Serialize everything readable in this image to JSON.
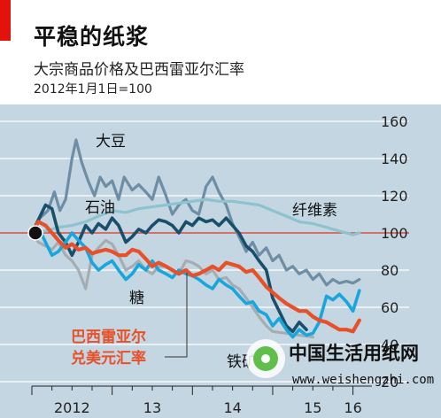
{
  "header": {
    "title": "平稳的纸浆",
    "subtitle": "大宗商品价格及巴西雷亚尔汇率",
    "index_note": "2012年1月1日=100"
  },
  "watermark": {
    "text": "中国生活用纸网",
    "url": "www.weishengzhi.com"
  },
  "colors": {
    "background": "#c3d6e1",
    "accent_tab": "#e3120b",
    "soy": "#6d8ea5",
    "oil": "#1a4f6b",
    "sugar": "#a6adb2",
    "pulp": "#8cc3cf",
    "iron": "#18a6dd",
    "brl": "#e8502a",
    "baseline": "#d94f3f"
  },
  "chart_data": {
    "type": "line",
    "title": "平稳的纸浆",
    "subtitle": "大宗商品价格及巴西雷亚尔汇率",
    "note": "2012年1月1日=100",
    "xlabel": "",
    "ylabel": "",
    "x_ticks": [
      "2012",
      "13",
      "14",
      "15",
      "16"
    ],
    "y_ticks": [
      20,
      40,
      60,
      80,
      100,
      120,
      140,
      160
    ],
    "ylim": [
      20,
      165
    ],
    "xlim": [
      2012.0,
      2016.17
    ],
    "baseline": 100,
    "grid": true,
    "series": [
      {
        "name": "大豆",
        "key": "soy",
        "x": [
          2012.0,
          2012.1,
          2012.2,
          2012.28,
          2012.35,
          2012.42,
          2012.5,
          2012.55,
          2012.62,
          2012.7,
          2012.78,
          2012.85,
          2012.92,
          2013.0,
          2013.08,
          2013.15,
          2013.25,
          2013.33,
          2013.42,
          2013.5,
          2013.58,
          2013.67,
          2013.75,
          2013.83,
          2013.92,
          2014.0,
          2014.08,
          2014.17,
          2014.25,
          2014.33,
          2014.42,
          2014.5,
          2014.58,
          2014.67,
          2014.75,
          2014.83,
          2014.92,
          2015.0,
          2015.08,
          2015.17,
          2015.25,
          2015.33,
          2015.42,
          2015.5,
          2015.58,
          2015.67,
          2015.75,
          2015.83,
          2015.92,
          2016.0,
          2016.08
        ],
        "y": [
          100,
          108,
          112,
          122,
          112,
          118,
          140,
          150,
          138,
          128,
          120,
          130,
          125,
          128,
          118,
          130,
          123,
          126,
          122,
          118,
          130,
          120,
          110,
          115,
          118,
          112,
          110,
          125,
          130,
          122,
          115,
          105,
          98,
          90,
          95,
          88,
          92,
          85,
          88,
          80,
          82,
          78,
          80,
          75,
          78,
          72,
          75,
          73,
          74,
          73,
          75
        ]
      },
      {
        "name": "纤维素",
        "key": "pulp",
        "x": [
          2012.0,
          2012.17,
          2012.33,
          2012.5,
          2012.67,
          2012.83,
          2013.0,
          2013.17,
          2013.33,
          2013.5,
          2013.67,
          2013.83,
          2014.0,
          2014.17,
          2014.33,
          2014.5,
          2014.67,
          2014.83,
          2015.0,
          2015.17,
          2015.33,
          2015.5,
          2015.67,
          2015.83,
          2015.92,
          2016.0,
          2016.08
        ],
        "y": [
          100,
          101,
          103,
          104,
          106,
          109,
          112,
          111,
          113,
          114,
          115,
          116,
          117,
          118,
          117,
          117,
          116,
          115,
          112,
          109,
          106,
          105,
          103,
          101,
          100,
          99,
          100
        ]
      },
      {
        "name": "石油",
        "key": "oil",
        "x": [
          2012.0,
          2012.08,
          2012.17,
          2012.25,
          2012.33,
          2012.42,
          2012.5,
          2012.58,
          2012.67,
          2012.75,
          2012.83,
          2012.92,
          2013.0,
          2013.08,
          2013.17,
          2013.25,
          2013.33,
          2013.42,
          2013.5,
          2013.58,
          2013.67,
          2013.75,
          2013.83,
          2013.92,
          2014.0,
          2014.08,
          2014.17,
          2014.25,
          2014.33,
          2014.42,
          2014.5,
          2014.58,
          2014.67,
          2014.75,
          2014.83,
          2014.92,
          2015.0,
          2015.08,
          2015.17,
          2015.25,
          2015.33,
          2015.42
        ],
        "y": [
          100,
          107,
          115,
          113,
          100,
          95,
          88,
          95,
          104,
          100,
          105,
          102,
          108,
          104,
          95,
          98,
          102,
          100,
          104,
          107,
          106,
          104,
          100,
          106,
          104,
          108,
          106,
          107,
          104,
          108,
          104,
          100,
          93,
          90,
          85,
          80,
          65,
          58,
          50,
          47,
          52,
          48
        ]
      },
      {
        "name": "糖",
        "key": "sugar",
        "x": [
          2012.0,
          2012.08,
          2012.17,
          2012.25,
          2012.33,
          2012.42,
          2012.5,
          2012.58,
          2012.67,
          2012.75,
          2012.83,
          2012.92,
          2013.0,
          2013.08,
          2013.17,
          2013.25,
          2013.33,
          2013.42,
          2013.5,
          2013.58,
          2013.67,
          2013.75,
          2013.83,
          2013.92,
          2014.0,
          2014.08,
          2014.17,
          2014.25,
          2014.33,
          2014.42,
          2014.5,
          2014.58,
          2014.67,
          2014.75,
          2014.83,
          2014.92,
          2015.0,
          2015.17,
          2015.33,
          2015.5
        ],
        "y": [
          100,
          95,
          93,
          91,
          95,
          88,
          85,
          80,
          70,
          88,
          92,
          96,
          94,
          88,
          80,
          82,
          85,
          80,
          78,
          82,
          82,
          80,
          78,
          85,
          84,
          82,
          78,
          80,
          75,
          76,
          72,
          70,
          65,
          60,
          55,
          50,
          47,
          46,
          45,
          44
        ]
      },
      {
        "name": "铁矿石",
        "key": "iron",
        "x": [
          2012.0,
          2012.08,
          2012.17,
          2012.25,
          2012.33,
          2012.42,
          2012.5,
          2012.58,
          2012.67,
          2012.75,
          2012.83,
          2012.92,
          2013.0,
          2013.08,
          2013.17,
          2013.25,
          2013.33,
          2013.42,
          2013.5,
          2013.58,
          2013.67,
          2013.75,
          2013.83,
          2013.92,
          2014.0,
          2014.08,
          2014.17,
          2014.25,
          2014.33,
          2014.42,
          2014.5,
          2014.58,
          2014.67,
          2014.75,
          2014.83,
          2014.92,
          2015.0,
          2015.08,
          2015.17,
          2015.25,
          2015.33,
          2015.42,
          2015.5,
          2015.58,
          2015.67,
          2015.75,
          2015.83,
          2015.92,
          2016.0,
          2016.08
        ],
        "y": [
          100,
          103,
          95,
          88,
          90,
          95,
          100,
          96,
          92,
          84,
          80,
          83,
          85,
          80,
          75,
          78,
          83,
          80,
          85,
          80,
          78,
          76,
          80,
          78,
          77,
          75,
          72,
          70,
          75,
          72,
          70,
          66,
          62,
          63,
          58,
          56,
          50,
          54,
          48,
          44,
          48,
          45,
          46,
          52,
          66,
          64,
          67,
          63,
          58,
          69
        ]
      },
      {
        "name": "巴西雷亚尔兑美元汇率",
        "key": "brl",
        "x": [
          2012.0,
          2012.08,
          2012.17,
          2012.25,
          2012.33,
          2012.42,
          2012.5,
          2012.58,
          2012.67,
          2012.75,
          2012.83,
          2012.92,
          2013.0,
          2013.08,
          2013.17,
          2013.25,
          2013.33,
          2013.42,
          2013.5,
          2013.58,
          2013.67,
          2013.75,
          2013.83,
          2013.92,
          2014.0,
          2014.08,
          2014.17,
          2014.25,
          2014.33,
          2014.42,
          2014.5,
          2014.58,
          2014.67,
          2014.75,
          2014.83,
          2014.92,
          2015.0,
          2015.08,
          2015.17,
          2015.25,
          2015.33,
          2015.42,
          2015.5,
          2015.58,
          2015.67,
          2015.75,
          2015.83,
          2015.92,
          2016.0,
          2016.08
        ],
        "y": [
          100,
          106,
          104,
          100,
          96,
          92,
          94,
          91,
          92,
          89,
          90,
          91,
          90,
          88,
          88,
          91,
          90,
          86,
          82,
          84,
          82,
          80,
          78,
          80,
          77,
          78,
          80,
          82,
          80,
          84,
          83,
          82,
          79,
          80,
          76,
          71,
          68,
          65,
          62,
          60,
          58,
          58,
          55,
          53,
          52,
          50,
          48,
          48,
          47,
          53
        ]
      }
    ]
  }
}
